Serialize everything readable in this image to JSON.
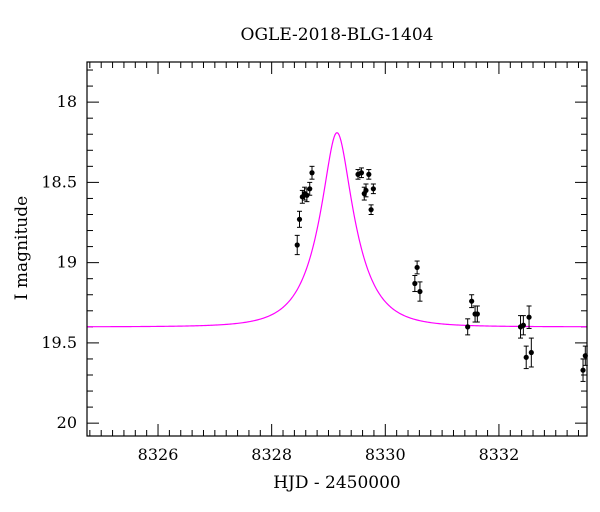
{
  "chart_data": {
    "type": "scatter",
    "title": "OGLE-2018-BLG-1404",
    "xlabel": "HJD - 2450000",
    "ylabel": "I magnitude",
    "xlim": [
      8324.75,
      8333.55
    ],
    "ylim": [
      20.08,
      17.75
    ],
    "y_inverted": true,
    "x_ticks": [
      8326,
      8328,
      8330,
      8332
    ],
    "x_tick_labels": [
      "8326",
      "8328",
      "8330",
      "8332"
    ],
    "x_minor_step": 0.2,
    "y_ticks": [
      18,
      18.5,
      19,
      19.5,
      20
    ],
    "y_tick_labels": [
      "18",
      "18.5",
      "19",
      "19.5",
      "20"
    ],
    "y_minor_step": 0.1,
    "grid": false,
    "colors": {
      "model": "#ff00ff",
      "data": "#000000"
    },
    "series": [
      {
        "kind": "points_with_errorbars",
        "x": [
          8328.45,
          8328.49,
          8328.54,
          8328.58,
          8328.62,
          8328.67,
          8328.71,
          8329.52,
          8329.58,
          8329.63,
          8329.66,
          8329.71,
          8329.75,
          8329.79,
          8330.52,
          8330.56,
          8330.61,
          8331.45,
          8331.52,
          8331.58,
          8331.62,
          8332.38,
          8332.43,
          8332.48,
          8332.53,
          8332.57,
          8333.48,
          8333.52
        ],
        "y": [
          18.89,
          18.73,
          18.59,
          18.57,
          18.58,
          18.54,
          18.44,
          18.45,
          18.44,
          18.57,
          18.55,
          18.45,
          18.67,
          18.54,
          19.13,
          19.03,
          19.18,
          19.4,
          19.24,
          19.32,
          19.32,
          19.4,
          19.39,
          19.59,
          19.34,
          19.56,
          19.67,
          19.58
        ],
        "err": [
          0.06,
          0.05,
          0.04,
          0.04,
          0.04,
          0.04,
          0.04,
          0.03,
          0.03,
          0.04,
          0.04,
          0.03,
          0.03,
          0.03,
          0.05,
          0.04,
          0.06,
          0.05,
          0.04,
          0.05,
          0.05,
          0.07,
          0.06,
          0.07,
          0.07,
          0.09,
          0.07,
          0.06
        ]
      },
      {
        "kind": "model_curve",
        "baseline": 19.4,
        "peak_mag": 18.19,
        "t0": 8329.15,
        "tE": 0.62
      }
    ]
  }
}
